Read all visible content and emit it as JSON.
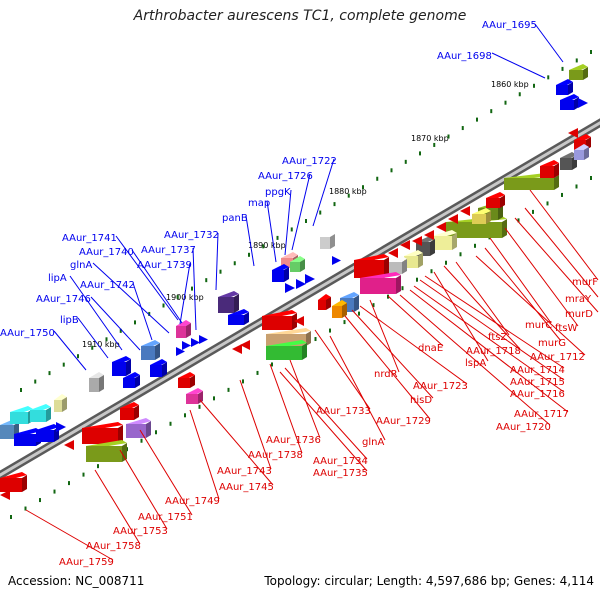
{
  "title": "Arthrobacter aurescens TC1, complete genome",
  "footer": {
    "accession": "Accession: NC_008711",
    "topology": "Topology: circular; Length: 4,597,686 bp; Genes: 4,114"
  },
  "colors": {
    "forward_strand": "#0000ee",
    "reverse_strand": "#dd0000",
    "backbone": "#888888",
    "kbp_tick": "#116611"
  },
  "kbp_ticks": [
    "1860 kbp",
    "1870 kbp",
    "1880 kbp",
    "1890 kbp",
    "1900 kbp",
    "1910 kbp"
  ],
  "forward_labels": [
    "AAur_1695",
    "AAur_1698",
    "AAur_1722",
    "AAur_1726",
    "ppgK",
    "map",
    "panB",
    "AAur_1732",
    "AAur_1741",
    "AAur_1740",
    "glnA",
    "AAur_1737",
    "AAur_1739",
    "AAur_1742",
    "lipA",
    "AAur_1746",
    "lipB",
    "AAur_1750"
  ],
  "reverse_labels": [
    "murF",
    "mraY",
    "murD",
    "ftsW",
    "murC",
    "murG",
    "AAur_1712",
    "ftsZ",
    "AAur_1718",
    "lspA",
    "AAur_1714",
    "AAur_1715",
    "AAur_1716",
    "AAur_1717",
    "AAur_1720",
    "dnaE",
    "nrdR",
    "AAur_1723",
    "hisD",
    "AAur_1729",
    "AAur_1733",
    "glnA",
    "AAur_1736",
    "AAur_1738",
    "AAur_1734",
    "AAur_1735",
    "AAur_1743",
    "AAur_1745",
    "AAur_1749",
    "AAur_1751",
    "AAur_1753",
    "AAur_1758",
    "AAur_1759"
  ]
}
